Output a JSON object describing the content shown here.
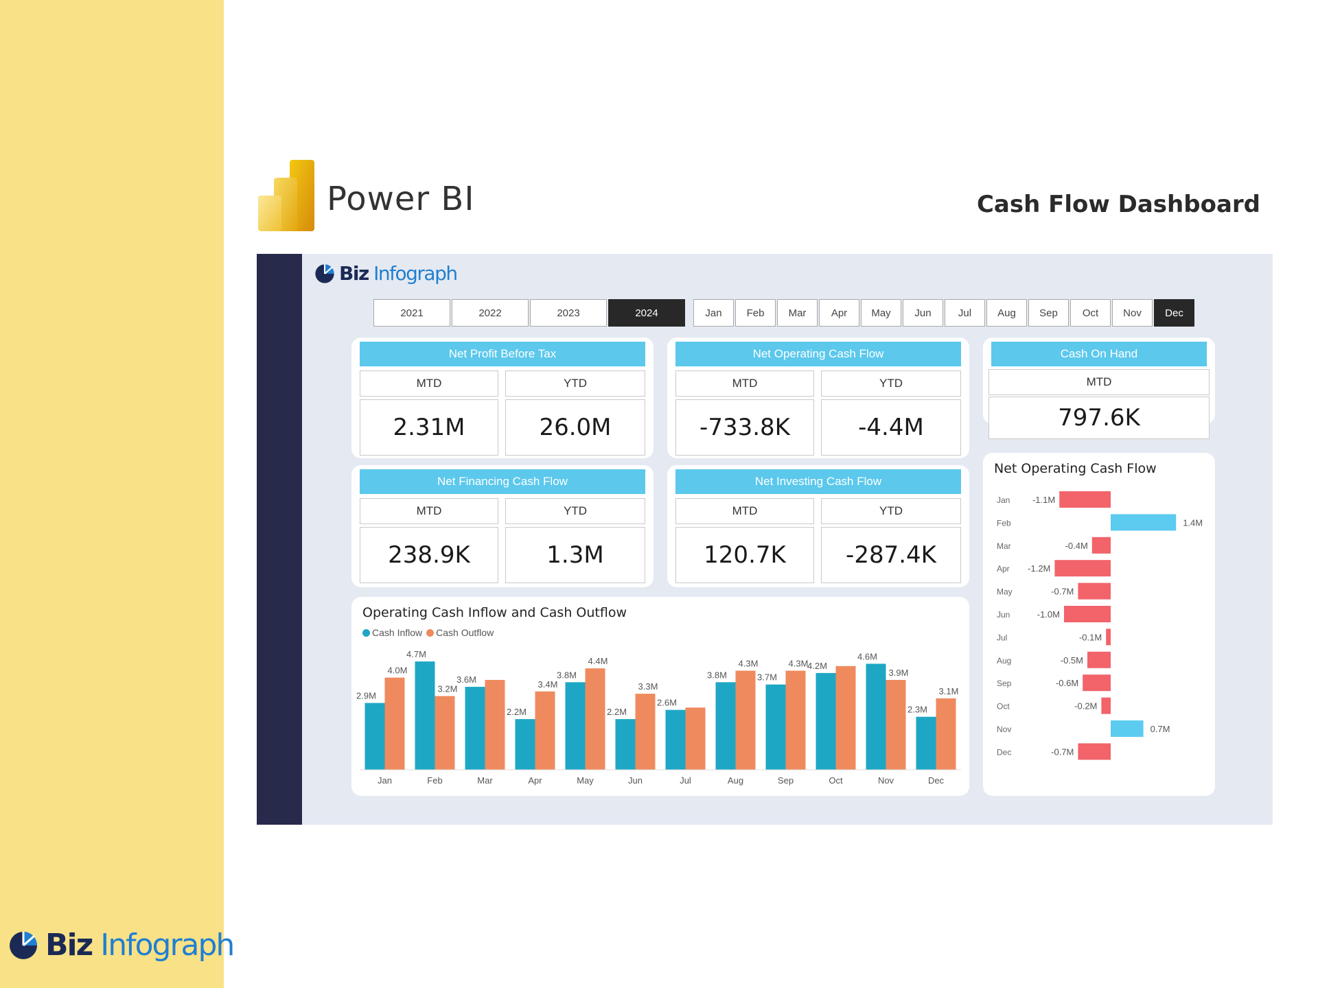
{
  "slide": {
    "product_name": "Power BI",
    "title": "Cash Flow Dashboard",
    "footer_logo": {
      "part1": "Biz",
      "part2": "Infograph"
    }
  },
  "dashboard": {
    "logo": {
      "part1": "Biz",
      "part2": "Infograph"
    },
    "years": [
      "2021",
      "2022",
      "2023",
      "2024"
    ],
    "selected_year": "2024",
    "months": [
      "Jan",
      "Feb",
      "Mar",
      "Apr",
      "May",
      "Jun",
      "Jul",
      "Aug",
      "Sep",
      "Oct",
      "Nov",
      "Dec"
    ],
    "selected_month": "Dec",
    "kpis": {
      "net_profit": {
        "title": "Net Profit Before Tax",
        "mtd_label": "MTD",
        "ytd_label": "YTD",
        "mtd": "2.31M",
        "ytd": "26.0M"
      },
      "net_operating": {
        "title": "Net Operating Cash Flow",
        "mtd_label": "MTD",
        "ytd_label": "YTD",
        "mtd": "-733.8K",
        "ytd": "-4.4M"
      },
      "cash_on_hand": {
        "title": "Cash On Hand",
        "mtd_label": "MTD",
        "mtd": "797.6K"
      },
      "net_financing": {
        "title": "Net Financing Cash Flow",
        "mtd_label": "MTD",
        "ytd_label": "YTD",
        "mtd": "238.9K",
        "ytd": "1.3M"
      },
      "net_investing": {
        "title": "Net Investing Cash Flow",
        "mtd_label": "MTD",
        "ytd_label": "YTD",
        "mtd": "120.7K",
        "ytd": "-287.4K"
      }
    },
    "colors": {
      "inflow": "#1ea7c5",
      "outflow": "#ef8a5e",
      "positive": "#5bcbf0",
      "negative": "#f2636a",
      "kpi_header": "#5bc8ec"
    }
  },
  "chart_data": [
    {
      "type": "bar",
      "title": "Operating Cash Inflow and Cash Outflow",
      "categories": [
        "Jan",
        "Feb",
        "Mar",
        "Apr",
        "May",
        "Jun",
        "Jul",
        "Aug",
        "Sep",
        "Oct",
        "Nov",
        "Dec"
      ],
      "series": [
        {
          "name": "Cash Inflow",
          "values": [
            2.9,
            4.7,
            3.6,
            2.2,
            3.8,
            2.2,
            2.6,
            3.8,
            3.7,
            4.2,
            4.6,
            2.3
          ],
          "labels": [
            "2.9M",
            "4.7M",
            "3.6M",
            "2.2M",
            "3.8M",
            "2.2M",
            "2.6M",
            "3.8M",
            "3.7M",
            "4.2M",
            "4.6M",
            "2.3M"
          ]
        },
        {
          "name": "Cash Outflow",
          "values": [
            4.0,
            3.2,
            3.9,
            3.4,
            4.4,
            3.3,
            2.7,
            4.3,
            4.3,
            4.5,
            3.9,
            3.1
          ],
          "labels": [
            "4.0M",
            "3.2M",
            "",
            "3.4M",
            "4.4M",
            "3.3M",
            "",
            "4.3M",
            "4.3M",
            "",
            "3.9M",
            "3.1M"
          ]
        }
      ],
      "ylim": [
        0,
        5
      ],
      "legend": "top-left"
    },
    {
      "type": "bar",
      "orientation": "horizontal",
      "title": "Net Operating Cash Flow",
      "categories": [
        "Jan",
        "Feb",
        "Mar",
        "Apr",
        "May",
        "Jun",
        "Jul",
        "Aug",
        "Sep",
        "Oct",
        "Nov",
        "Dec"
      ],
      "values": [
        -1.1,
        1.4,
        -0.4,
        -1.2,
        -0.7,
        -1.0,
        -0.1,
        -0.5,
        -0.6,
        -0.2,
        0.7,
        -0.7
      ],
      "labels": [
        "-1.1M",
        "1.4M",
        "-0.4M",
        "-1.2M",
        "-0.7M",
        "-1.0M",
        "-0.1M",
        "-0.5M",
        "-0.6M",
        "-0.2M",
        "0.7M",
        "-0.7M"
      ],
      "xlim": [
        -1.2,
        1.4
      ]
    }
  ]
}
